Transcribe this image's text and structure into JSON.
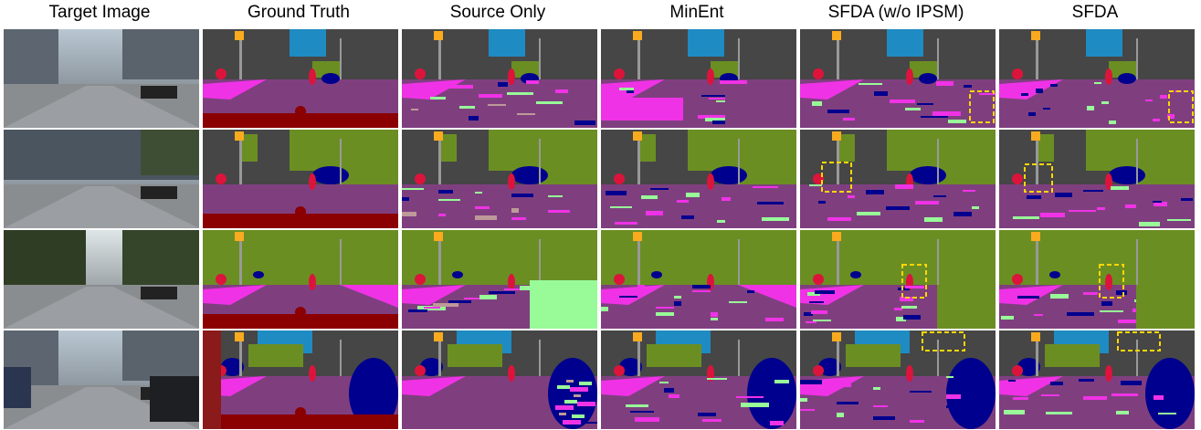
{
  "columns": [
    {
      "id": "target",
      "title": "Target Image"
    },
    {
      "id": "gt",
      "title": "Ground Truth"
    },
    {
      "id": "source",
      "title": "Source Only"
    },
    {
      "id": "minent",
      "title": "MinEnt"
    },
    {
      "id": "sfda_noipsm",
      "title": "SFDA (w/o IPSM)"
    },
    {
      "id": "sfda",
      "title": "SFDA"
    }
  ],
  "rows": 4,
  "palette": {
    "road": "#7f3f7f",
    "sidewalk": "#f032e6",
    "building": "#464646",
    "vegetation": "#6b8e23",
    "sky": "#1e8bc3",
    "car": "#00008e",
    "person": "#dc143c",
    "rider": "#ff0000",
    "sign": "#dcdc00",
    "light": "#faaa1e",
    "pole": "#999999",
    "terrain": "#98fb98",
    "wall": "#8b1a1a",
    "fence": "#be9999",
    "ego": "#8b0000",
    "highlight": "#ffd700"
  }
}
